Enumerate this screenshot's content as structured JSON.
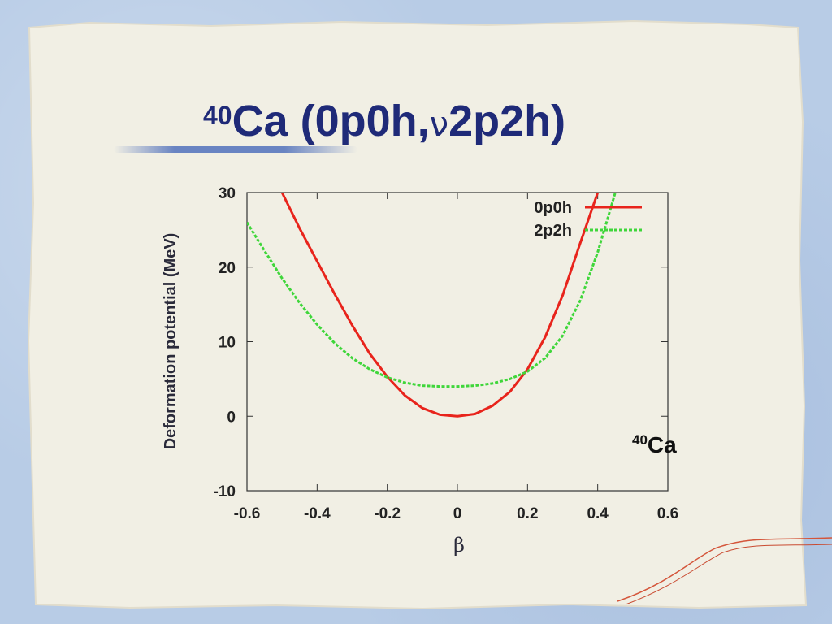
{
  "slide": {
    "title_mass": "40",
    "title_element": "Ca (0p0h,",
    "title_nu": "ν",
    "title_tail": "2p2h)",
    "nucleus_mass": "40",
    "nucleus_symbol": "Ca"
  },
  "chart_data": {
    "type": "line",
    "title": "",
    "xlabel": "β",
    "ylabel": "Deformation potential (MeV)",
    "xlim": [
      -0.6,
      0.6
    ],
    "ylim": [
      -10,
      30
    ],
    "xticks": [
      -0.6,
      -0.4,
      -0.2,
      0,
      0.2,
      0.4,
      0.6
    ],
    "xtick_labels": [
      "-0.6",
      "-0.4",
      "-0.2",
      "0",
      "0.2",
      "0.4",
      "0.6"
    ],
    "yticks": [
      -10,
      0,
      10,
      20,
      30
    ],
    "ytick_labels": [
      "-10",
      "0",
      "10",
      "20",
      "30"
    ],
    "grid": false,
    "legend_position": "top-right",
    "series": [
      {
        "name": "0p0h",
        "color": "#e8241c",
        "style": "solid",
        "x": [
          -0.5,
          -0.45,
          -0.4,
          -0.35,
          -0.3,
          -0.25,
          -0.2,
          -0.15,
          -0.1,
          -0.05,
          0,
          0.05,
          0.1,
          0.15,
          0.2,
          0.25,
          0.3,
          0.35,
          0.4
        ],
        "y": [
          30,
          25.2,
          20.8,
          16.4,
          12.2,
          8.4,
          5.3,
          2.8,
          1.1,
          0.2,
          0,
          0.3,
          1.4,
          3.3,
          6.3,
          10.6,
          16.2,
          23.2,
          30
        ]
      },
      {
        "name": "2p2h",
        "color": "#3fd63a",
        "style": "dashed",
        "x": [
          -0.6,
          -0.55,
          -0.5,
          -0.45,
          -0.4,
          -0.35,
          -0.3,
          -0.25,
          -0.2,
          -0.15,
          -0.1,
          -0.05,
          0,
          0.05,
          0.1,
          0.15,
          0.2,
          0.25,
          0.3,
          0.35,
          0.4,
          0.45
        ],
        "y": [
          26,
          22.2,
          18.5,
          15.2,
          12.3,
          9.8,
          7.8,
          6.3,
          5.2,
          4.5,
          4.1,
          4.0,
          4.0,
          4.1,
          4.4,
          5.0,
          6.0,
          7.8,
          10.8,
          15.5,
          22.0,
          30
        ]
      }
    ]
  }
}
